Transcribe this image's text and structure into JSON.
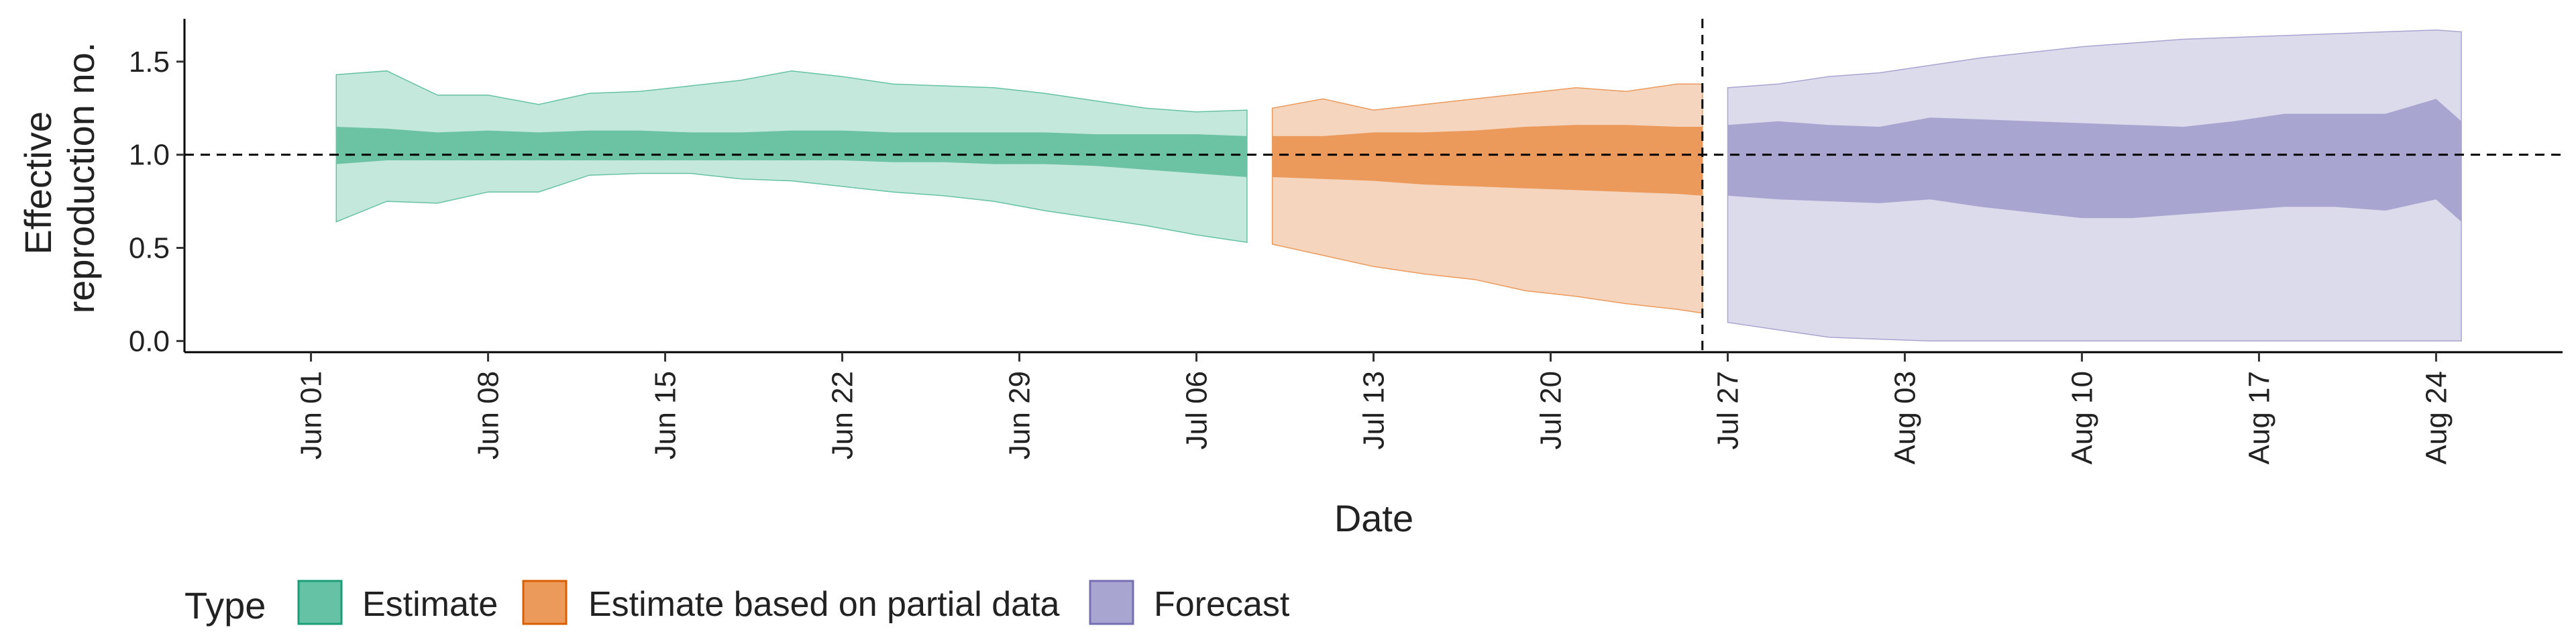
{
  "chart_data": {
    "type": "area",
    "xlabel": "Date",
    "ylabel": "Effective reproduction no.",
    "ylabel_lines": [
      "Effective",
      "reproduction no."
    ],
    "x_range": [
      "2020-05-27",
      "2020-08-29"
    ],
    "ylim": [
      -0.06,
      1.73
    ],
    "y_ticks": [
      0.0,
      0.5,
      1.0,
      1.5
    ],
    "y_tick_labels": [
      "0.0",
      "0.5",
      "1.0",
      "1.5"
    ],
    "x_ticks": [
      "2020-06-01",
      "2020-06-08",
      "2020-06-15",
      "2020-06-22",
      "2020-06-29",
      "2020-07-06",
      "2020-07-13",
      "2020-07-20",
      "2020-07-27",
      "2020-08-03",
      "2020-08-10",
      "2020-08-17",
      "2020-08-24"
    ],
    "x_tick_labels": [
      "Jun 01",
      "Jun 08",
      "Jun 15",
      "Jun 22",
      "Jun 29",
      "Jul 06",
      "Jul 13",
      "Jul 20",
      "Jul 27",
      "Aug 03",
      "Aug 10",
      "Aug 17",
      "Aug 24"
    ],
    "reference_line_y": 1.0,
    "forecast_date": "2020-07-26",
    "grid": false,
    "legend": {
      "title": "Type",
      "position": "bottom-left",
      "items": [
        {
          "label": "Estimate",
          "fill": "#66c2a5",
          "stroke": "#1b9e77"
        },
        {
          "label": "Estimate based on partial data",
          "fill": "#ec9a5c",
          "stroke": "#d95f02"
        },
        {
          "label": "Forecast",
          "fill": "#a9a5d1",
          "stroke": "#7570b3"
        }
      ]
    },
    "series": [
      {
        "name": "Estimate",
        "outer_color": "#c4e8dc",
        "outer_stroke": "#66c2a5",
        "inner_color": "#6cc3a4",
        "x": [
          "2020-06-02",
          "2020-06-04",
          "2020-06-06",
          "2020-06-08",
          "2020-06-10",
          "2020-06-12",
          "2020-06-14",
          "2020-06-16",
          "2020-06-18",
          "2020-06-20",
          "2020-06-22",
          "2020-06-24",
          "2020-06-26",
          "2020-06-28",
          "2020-06-30",
          "2020-07-02",
          "2020-07-04",
          "2020-07-06",
          "2020-07-08"
        ],
        "lower90": [
          0.64,
          0.75,
          0.74,
          0.8,
          0.8,
          0.89,
          0.9,
          0.9,
          0.87,
          0.86,
          0.83,
          0.8,
          0.78,
          0.75,
          0.7,
          0.66,
          0.62,
          0.57,
          0.53
        ],
        "upper90": [
          1.43,
          1.45,
          1.32,
          1.32,
          1.27,
          1.33,
          1.34,
          1.37,
          1.4,
          1.45,
          1.42,
          1.38,
          1.37,
          1.36,
          1.33,
          1.29,
          1.25,
          1.23,
          1.24
        ],
        "lower50": [
          0.95,
          0.97,
          0.97,
          0.97,
          0.97,
          0.97,
          0.97,
          0.97,
          0.97,
          0.97,
          0.97,
          0.96,
          0.96,
          0.95,
          0.95,
          0.94,
          0.92,
          0.9,
          0.88
        ],
        "upper50": [
          1.15,
          1.14,
          1.12,
          1.13,
          1.12,
          1.13,
          1.13,
          1.12,
          1.12,
          1.13,
          1.13,
          1.12,
          1.12,
          1.12,
          1.12,
          1.11,
          1.11,
          1.11,
          1.1
        ]
      },
      {
        "name": "Estimate based on partial data",
        "outer_color": "#f5d5be",
        "outer_stroke": "#ec9a5c",
        "inner_color": "#ec9a5c",
        "x": [
          "2020-07-09",
          "2020-07-11",
          "2020-07-13",
          "2020-07-15",
          "2020-07-17",
          "2020-07-19",
          "2020-07-21",
          "2020-07-23",
          "2020-07-25",
          "2020-07-26"
        ],
        "lower90": [
          0.52,
          0.46,
          0.4,
          0.36,
          0.33,
          0.27,
          0.24,
          0.2,
          0.17,
          0.15
        ],
        "upper90": [
          1.25,
          1.3,
          1.24,
          1.27,
          1.3,
          1.33,
          1.36,
          1.34,
          1.38,
          1.38
        ],
        "lower50": [
          0.88,
          0.87,
          0.86,
          0.84,
          0.83,
          0.82,
          0.81,
          0.8,
          0.79,
          0.78
        ],
        "upper50": [
          1.1,
          1.1,
          1.12,
          1.12,
          1.13,
          1.15,
          1.16,
          1.16,
          1.15,
          1.15
        ]
      },
      {
        "name": "Forecast",
        "outer_color": "#dcdbec",
        "outer_stroke": "#a9a5d1",
        "inner_color": "#a9a5d1",
        "x": [
          "2020-07-27",
          "2020-07-29",
          "2020-07-31",
          "2020-08-02",
          "2020-08-04",
          "2020-08-06",
          "2020-08-08",
          "2020-08-10",
          "2020-08-12",
          "2020-08-14",
          "2020-08-16",
          "2020-08-18",
          "2020-08-20",
          "2020-08-22",
          "2020-08-24",
          "2020-08-25"
        ],
        "lower90": [
          0.1,
          0.06,
          0.02,
          0.01,
          0.0,
          0.0,
          0.0,
          0.0,
          0.0,
          0.0,
          0.0,
          0.0,
          0.0,
          0.0,
          0.0,
          0.0
        ],
        "upper90": [
          1.36,
          1.38,
          1.42,
          1.44,
          1.48,
          1.52,
          1.55,
          1.58,
          1.6,
          1.62,
          1.63,
          1.64,
          1.65,
          1.66,
          1.67,
          1.66
        ],
        "lower50": [
          0.78,
          0.76,
          0.75,
          0.74,
          0.76,
          0.72,
          0.69,
          0.66,
          0.66,
          0.68,
          0.7,
          0.72,
          0.72,
          0.7,
          0.76,
          0.64
        ],
        "upper50": [
          1.16,
          1.18,
          1.16,
          1.15,
          1.2,
          1.19,
          1.18,
          1.17,
          1.16,
          1.15,
          1.18,
          1.22,
          1.22,
          1.22,
          1.3,
          1.18
        ]
      }
    ]
  }
}
